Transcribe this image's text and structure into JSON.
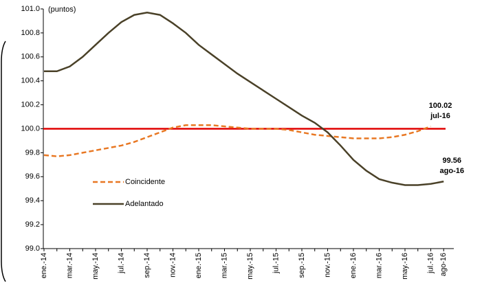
{
  "chart_data": {
    "type": "line",
    "unit_label": "(puntos)",
    "categories": [
      "ene.-14",
      null,
      "mar.-14",
      null,
      "may.-14",
      null,
      "jul.-14",
      null,
      "sep.-14",
      null,
      "nov.-14",
      null,
      "ene.-15",
      null,
      "mar.-15",
      null,
      "may.-15",
      null,
      "jul.-15",
      null,
      "sep.-15",
      null,
      "nov.-15",
      null,
      "ene.-16",
      null,
      "mar.-16",
      null,
      "may.-16",
      null,
      "jul.-16",
      "ago-16"
    ],
    "series": [
      {
        "name": "Coincidente",
        "color": "#e87722",
        "dashed": true,
        "values": [
          99.78,
          99.77,
          99.78,
          99.8,
          99.82,
          99.84,
          99.86,
          99.89,
          99.93,
          99.97,
          100.01,
          100.03,
          100.03,
          100.03,
          100.02,
          100.01,
          100.0,
          100.0,
          100.0,
          99.99,
          99.97,
          99.95,
          99.94,
          99.93,
          99.92,
          99.92,
          99.92,
          99.93,
          99.95,
          99.98,
          100.02,
          null
        ]
      },
      {
        "name": "Adelantado",
        "color": "#4a4128",
        "dashed": false,
        "values": [
          100.48,
          100.48,
          100.52,
          100.6,
          100.7,
          100.8,
          100.89,
          100.95,
          100.97,
          100.95,
          100.88,
          100.8,
          100.7,
          100.62,
          100.54,
          100.46,
          100.39,
          100.32,
          100.25,
          100.18,
          100.11,
          100.05,
          99.97,
          99.86,
          99.74,
          99.65,
          99.58,
          99.55,
          99.53,
          99.53,
          99.54,
          99.56
        ]
      }
    ],
    "annotations": [
      {
        "series": 0,
        "index": 30,
        "text": "100.02",
        "date": "jul-16"
      },
      {
        "series": 1,
        "index": 31,
        "text": "99.56",
        "date": "ago-16"
      }
    ],
    "reference_line": {
      "value": 100,
      "color": "#e00000"
    },
    "ylim": [
      99.0,
      101.0
    ],
    "yticks": [
      {
        "value": 99.0,
        "label": "99.0"
      },
      99.2,
      99.4,
      99.6,
      99.8,
      {
        "value": 100.0,
        "label": "100.0"
      },
      100.2,
      100.4,
      100.6,
      100.8,
      {
        "value": 101.0,
        "label": "101.0"
      }
    ]
  }
}
